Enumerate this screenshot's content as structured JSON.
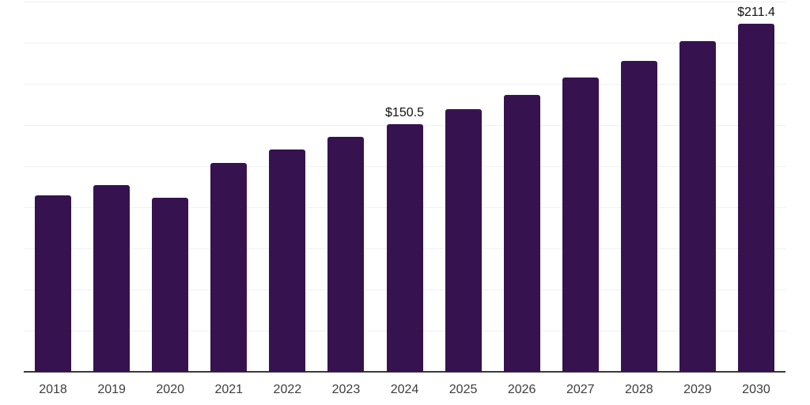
{
  "chart_data": {
    "type": "bar",
    "title": "",
    "xlabel": "",
    "ylabel": "",
    "categories": [
      "2018",
      "2019",
      "2020",
      "2021",
      "2022",
      "2023",
      "2024",
      "2025",
      "2026",
      "2027",
      "2028",
      "2029",
      "2030"
    ],
    "values": [
      107,
      113.5,
      106,
      127,
      135,
      143,
      150.5,
      159.5,
      168.5,
      179,
      189,
      201,
      211.4
    ],
    "data_labels": [
      "",
      "",
      "",
      "",
      "",
      "",
      "$150.5",
      "",
      "",
      "",
      "",
      "",
      "$211.4"
    ],
    "value_prefix": "$",
    "ylim": [
      0,
      225
    ],
    "grid_step": 25,
    "grid": true,
    "legend_position": "none",
    "y_tick_labels_visible": false,
    "bar_color": "#36124F"
  },
  "colors": {
    "background": "#ffffff",
    "bar": "#36124F",
    "gridline": "#f2f0f3",
    "axis_line": "#3a3a3a",
    "tick_label": "#3d3d3d",
    "data_label": "#101010"
  }
}
